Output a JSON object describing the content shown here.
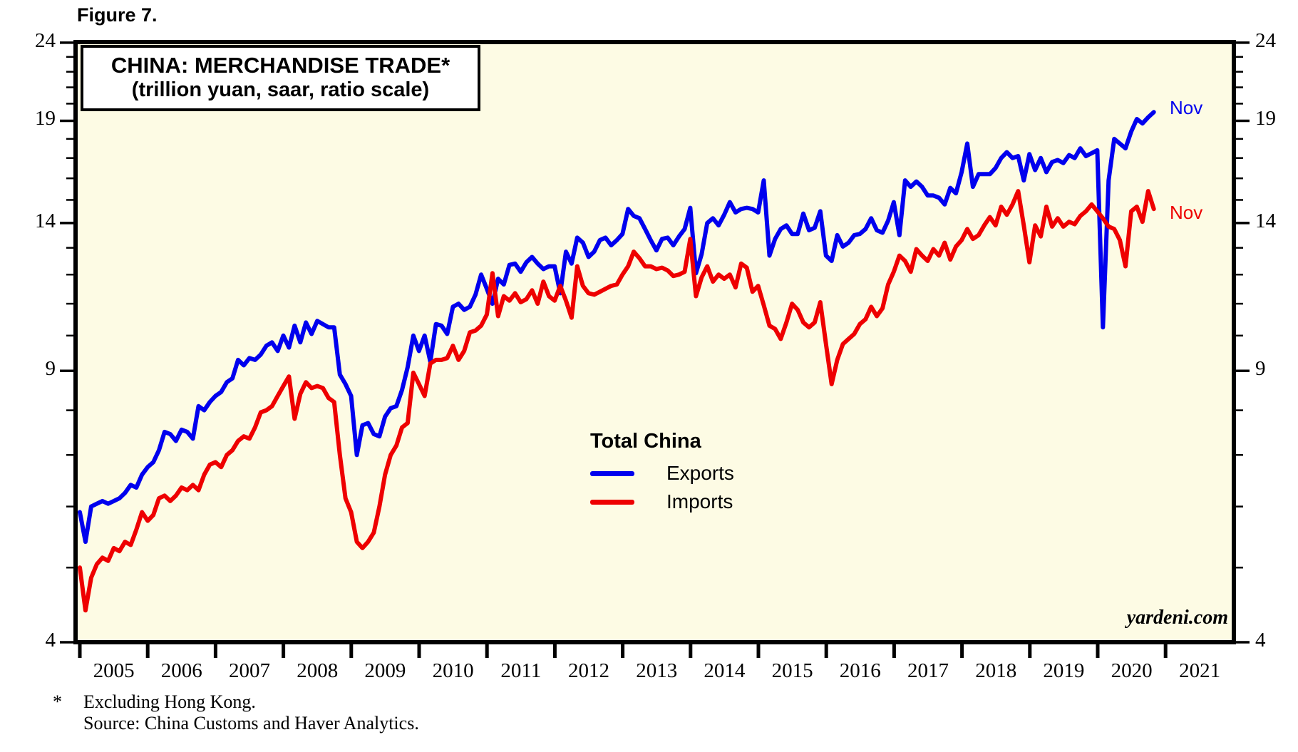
{
  "figure_label": "Figure 7.",
  "title": {
    "line1": "CHINA: MERCHANDISE TRADE*",
    "line2": "(trillion yuan, saar, ratio scale)"
  },
  "legend": {
    "title": "Total China",
    "items": [
      {
        "label": "Exports",
        "color": "#0000ee"
      },
      {
        "label": "Imports",
        "color": "#ee0000"
      }
    ]
  },
  "annotations": {
    "exports_end_label": "Nov",
    "imports_end_label": "Nov",
    "watermark": "yardeni.com"
  },
  "footnote": {
    "marker": "*",
    "line1": "Excluding Hong Kong.",
    "line2": "Source: China Customs and Haver Analytics."
  },
  "colors": {
    "exports": "#0000ee",
    "imports": "#ee0000",
    "plot_background": "#fdfbe4",
    "axis": "#000000"
  },
  "chart_data": {
    "type": "line",
    "title": "CHINA: MERCHANDISE TRADE*",
    "subtitle": "(trillion yuan, saar, ratio scale)",
    "y_scale": "log",
    "ylim": [
      4,
      24
    ],
    "ylabel": "trillion yuan, saar",
    "xlabel": "",
    "grid": false,
    "legend_position": "center-bottom-inside",
    "y_ticks_major": [
      4,
      9,
      14,
      19,
      24
    ],
    "y_ticks_minor": [
      5,
      6,
      7,
      8,
      10,
      11,
      12,
      13,
      15,
      16,
      17,
      18,
      20,
      21,
      22,
      23
    ],
    "x_tick_years": [
      2005,
      2006,
      2007,
      2008,
      2009,
      2010,
      2011,
      2012,
      2013,
      2014,
      2015,
      2016,
      2017,
      2018,
      2019,
      2020,
      2021
    ],
    "x_start_month": "2005-01",
    "x_end_month": "2020-11",
    "series": [
      {
        "name": "Exports",
        "color": "#0000ee",
        "end_label": "Nov",
        "end_value": 19.5,
        "monthly_values": [
          5.9,
          5.4,
          6.0,
          6.05,
          6.1,
          6.05,
          6.1,
          6.15,
          6.25,
          6.4,
          6.35,
          6.6,
          6.75,
          6.85,
          7.1,
          7.5,
          7.45,
          7.3,
          7.55,
          7.5,
          7.35,
          8.1,
          8.0,
          8.2,
          8.35,
          8.45,
          8.7,
          8.8,
          9.3,
          9.15,
          9.35,
          9.3,
          9.45,
          9.7,
          9.8,
          9.55,
          10.0,
          9.65,
          10.3,
          9.8,
          10.4,
          10.05,
          10.45,
          10.35,
          10.25,
          10.25,
          8.9,
          8.65,
          8.35,
          7.0,
          7.65,
          7.7,
          7.45,
          7.4,
          7.85,
          8.05,
          8.1,
          8.5,
          9.1,
          10.0,
          9.55,
          10.0,
          9.25,
          10.35,
          10.3,
          10.05,
          10.9,
          11.0,
          10.8,
          10.9,
          11.3,
          12.0,
          11.5,
          11.0,
          11.85,
          11.65,
          12.35,
          12.4,
          12.1,
          12.45,
          12.65,
          12.4,
          12.2,
          12.3,
          12.3,
          11.35,
          12.85,
          12.4,
          13.4,
          13.2,
          12.65,
          12.85,
          13.3,
          13.4,
          13.1,
          13.3,
          13.55,
          14.6,
          14.3,
          14.2,
          13.75,
          13.3,
          12.9,
          13.35,
          13.4,
          13.1,
          13.45,
          13.75,
          14.65,
          12.05,
          12.75,
          14.0,
          14.2,
          13.9,
          14.35,
          14.9,
          14.45,
          14.6,
          14.65,
          14.6,
          14.45,
          15.9,
          12.7,
          13.35,
          13.75,
          13.9,
          13.55,
          13.55,
          14.4,
          13.7,
          13.8,
          14.5,
          12.7,
          12.5,
          13.5,
          13.05,
          13.2,
          13.5,
          13.55,
          13.75,
          14.2,
          13.7,
          13.6,
          14.1,
          14.9,
          13.5,
          15.9,
          15.6,
          15.85,
          15.6,
          15.2,
          15.2,
          15.1,
          14.8,
          15.55,
          15.3,
          16.3,
          17.75,
          15.6,
          16.2,
          16.2,
          16.2,
          16.5,
          17.0,
          17.3,
          17.0,
          17.1,
          15.9,
          17.2,
          16.4,
          17.0,
          16.3,
          16.8,
          16.9,
          16.75,
          17.15,
          17.0,
          17.5,
          17.1,
          17.25,
          17.4,
          10.25,
          15.9,
          18.0,
          17.75,
          17.5,
          18.4,
          19.1,
          18.85,
          19.2,
          19.5
        ]
      },
      {
        "name": "Imports",
        "color": "#ee0000",
        "end_label": "Nov",
        "end_value": 14.6,
        "monthly_values": [
          5.0,
          4.4,
          4.85,
          5.05,
          5.15,
          5.1,
          5.3,
          5.25,
          5.4,
          5.35,
          5.6,
          5.9,
          5.75,
          5.85,
          6.15,
          6.2,
          6.1,
          6.2,
          6.35,
          6.3,
          6.4,
          6.3,
          6.6,
          6.8,
          6.85,
          6.75,
          7.0,
          7.1,
          7.3,
          7.4,
          7.35,
          7.6,
          7.95,
          8.0,
          8.1,
          8.35,
          8.6,
          8.85,
          7.8,
          8.4,
          8.7,
          8.55,
          8.6,
          8.55,
          8.3,
          8.2,
          7.0,
          6.15,
          5.9,
          5.4,
          5.3,
          5.4,
          5.55,
          6.0,
          6.6,
          7.0,
          7.2,
          7.6,
          7.7,
          8.95,
          8.65,
          8.35,
          9.2,
          9.3,
          9.3,
          9.35,
          9.7,
          9.3,
          9.55,
          10.1,
          10.15,
          10.3,
          10.65,
          12.05,
          10.6,
          11.25,
          11.1,
          11.35,
          11.05,
          11.15,
          11.45,
          11.0,
          11.75,
          11.25,
          11.1,
          11.6,
          11.1,
          10.55,
          12.3,
          11.6,
          11.35,
          11.3,
          11.4,
          11.5,
          11.6,
          11.65,
          12.0,
          12.3,
          12.85,
          12.6,
          12.3,
          12.3,
          12.2,
          12.25,
          12.15,
          11.95,
          12.0,
          12.1,
          13.35,
          11.25,
          11.9,
          12.3,
          11.75,
          12.0,
          11.85,
          12.0,
          11.55,
          12.4,
          12.25,
          11.4,
          11.6,
          10.95,
          10.3,
          10.2,
          9.9,
          10.4,
          11.0,
          10.8,
          10.4,
          10.25,
          10.4,
          11.05,
          9.75,
          8.65,
          9.3,
          9.75,
          9.9,
          10.05,
          10.35,
          10.5,
          10.9,
          10.6,
          10.85,
          11.65,
          12.1,
          12.7,
          12.5,
          12.1,
          12.95,
          12.7,
          12.5,
          12.95,
          12.7,
          13.2,
          12.55,
          13.05,
          13.3,
          13.75,
          13.35,
          13.5,
          13.9,
          14.25,
          13.9,
          14.7,
          14.35,
          14.8,
          15.4,
          13.9,
          12.45,
          13.9,
          13.45,
          14.7,
          13.85,
          14.2,
          13.85,
          14.05,
          13.95,
          14.3,
          14.5,
          14.8,
          14.5,
          14.2,
          13.85,
          13.75,
          13.3,
          12.3,
          14.5,
          14.7,
          14.05,
          15.4,
          14.6
        ]
      }
    ]
  }
}
